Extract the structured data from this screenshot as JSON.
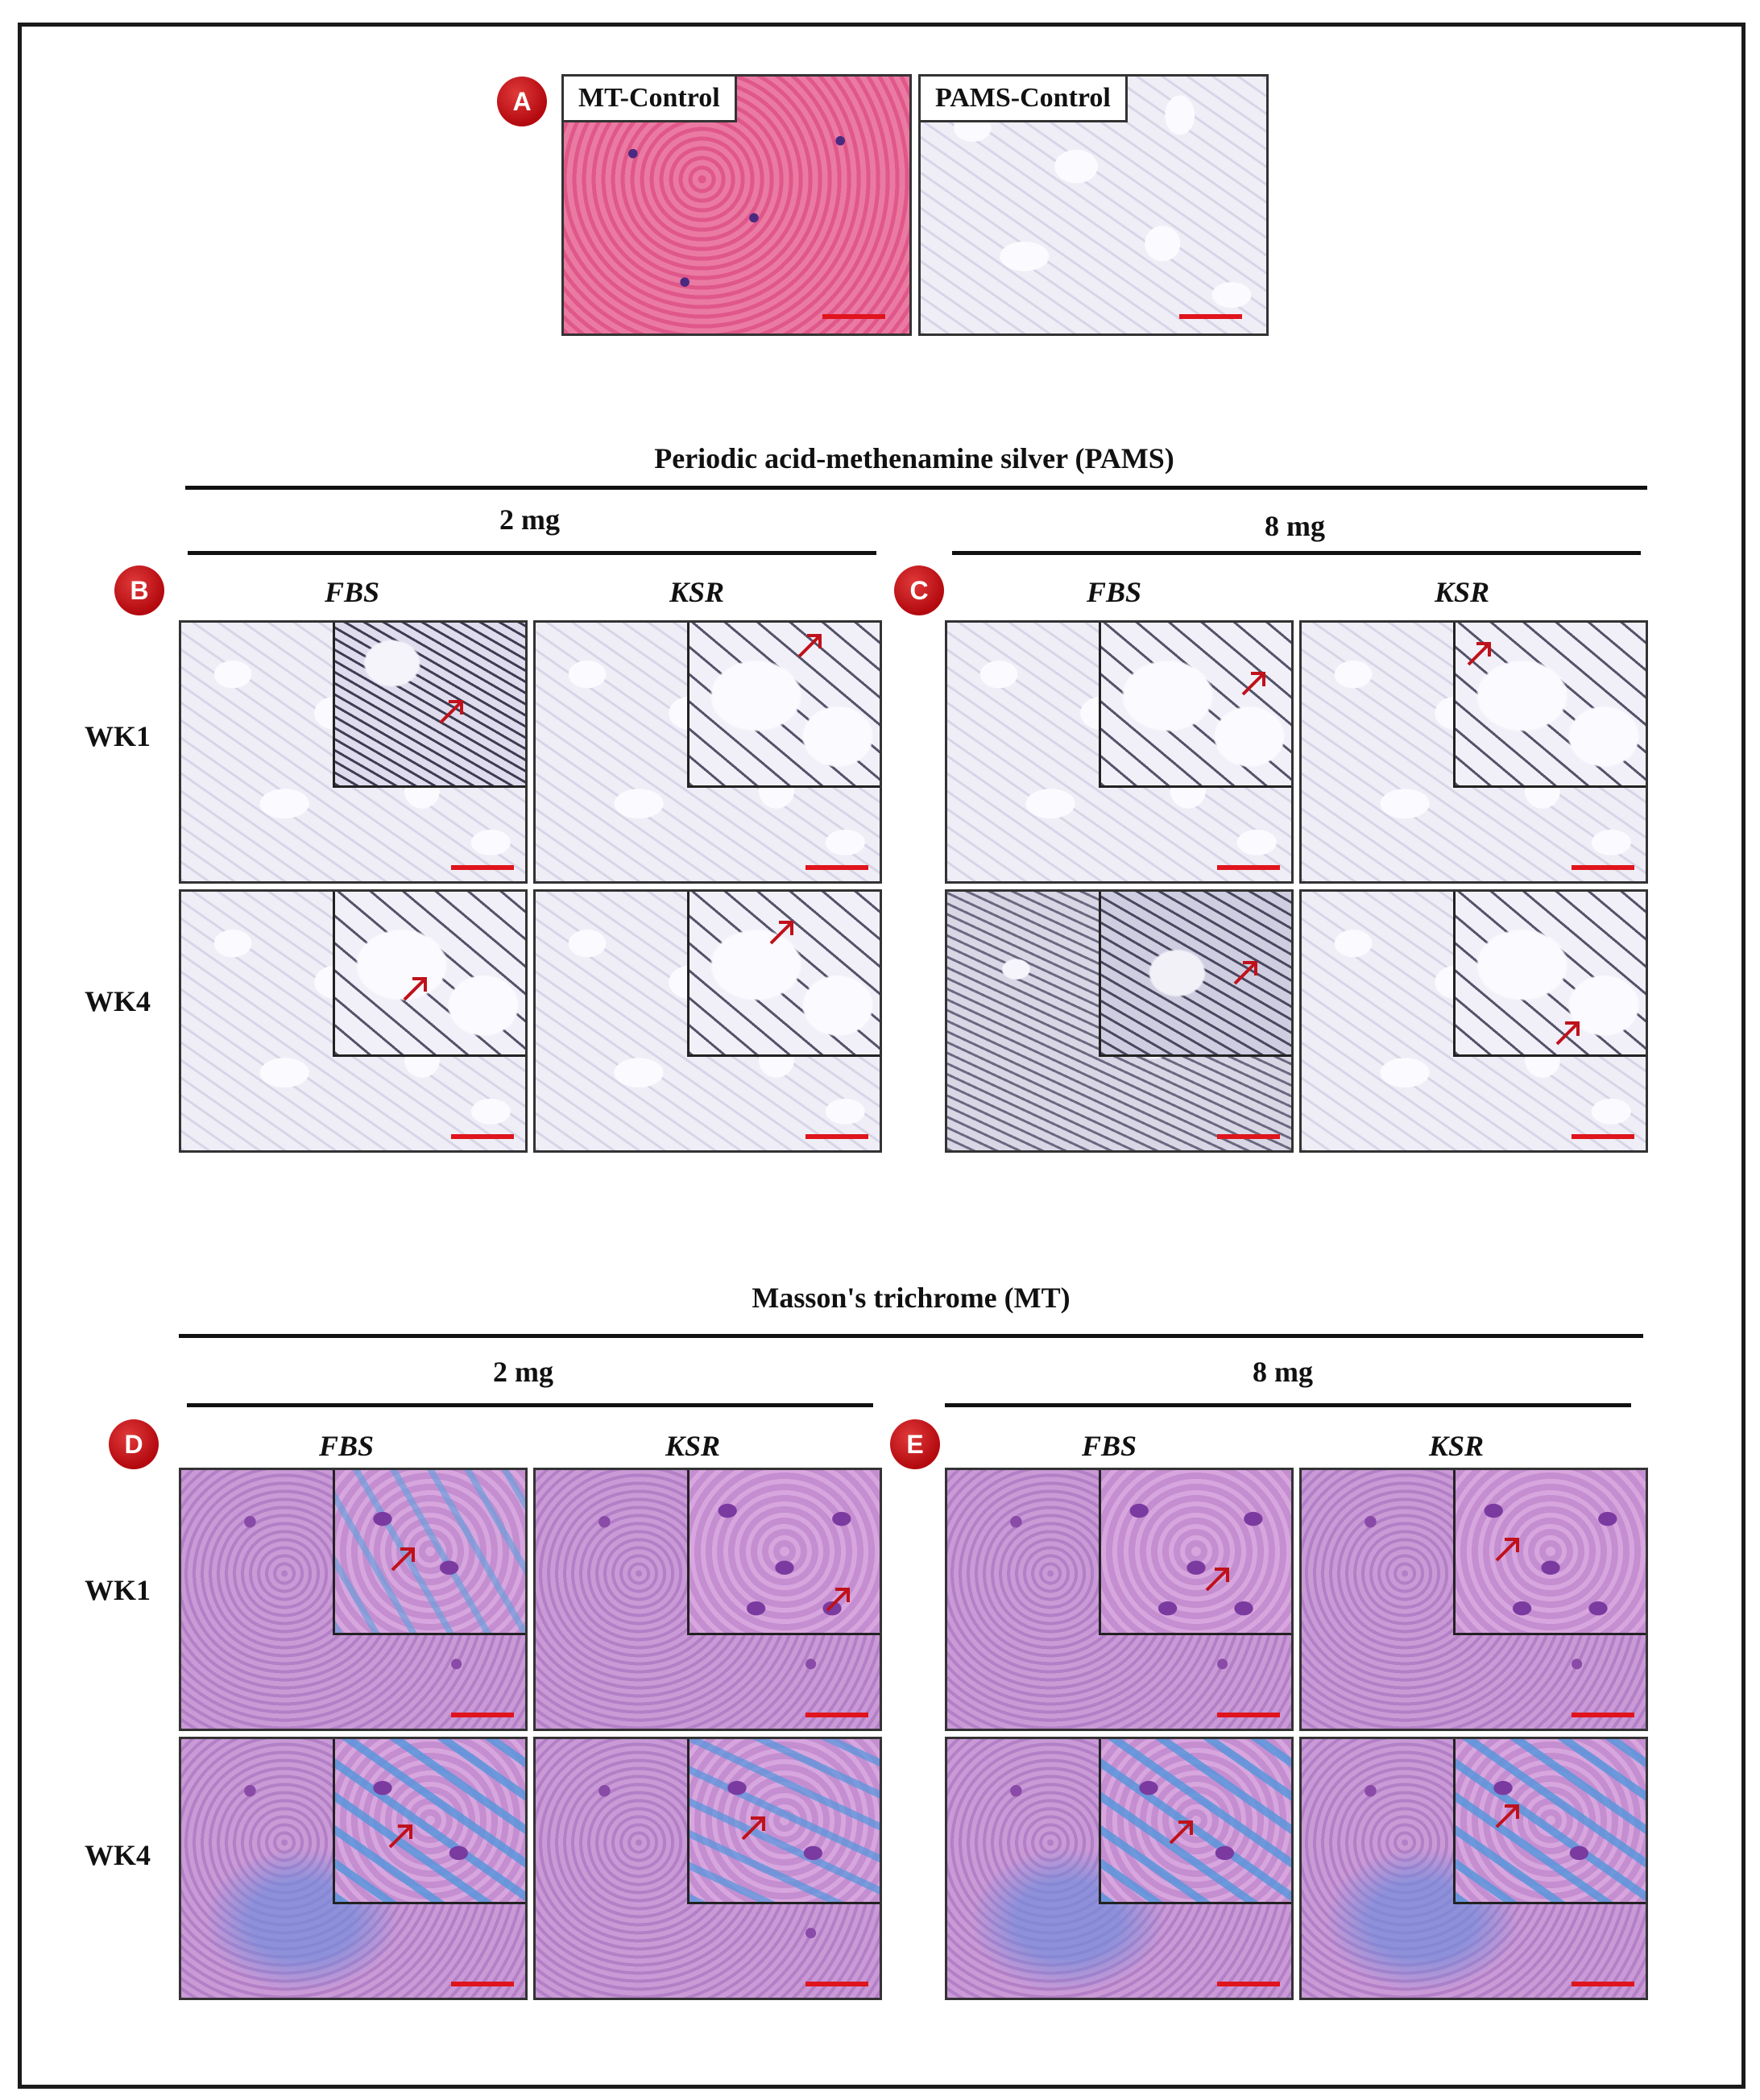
{
  "panel_letters": {
    "a": "A",
    "b": "B",
    "c": "C",
    "d": "D",
    "e": "E"
  },
  "controls": {
    "mt_label": "MT-Control",
    "pams_label": "PAMS-Control"
  },
  "pams_section": {
    "title": "Periodic acid-methenamine silver (PAMS)",
    "dose_left": "2 mg",
    "dose_right": "8 mg"
  },
  "mt_section": {
    "title": "Masson's trichrome (MT)",
    "dose_left": "2 mg",
    "dose_right": "8 mg"
  },
  "columns": {
    "fbs": "FBS",
    "ksr": "KSR"
  },
  "rows": {
    "wk1": "WK1",
    "wk4": "WK4"
  },
  "colors": {
    "badge": "#c0111a",
    "scale_bar": "#e0141c",
    "arrow": "#c0111a"
  }
}
